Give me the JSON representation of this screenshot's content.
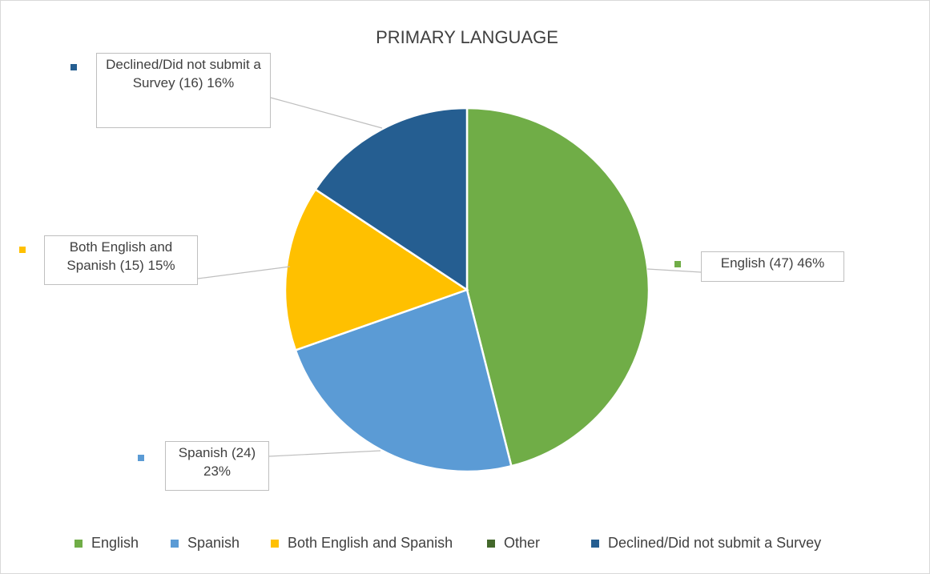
{
  "chart_data": {
    "type": "pie",
    "title": "PRIMARY LANGUAGE",
    "categories": [
      "English",
      "Spanish",
      "Both English and Spanish",
      "Other",
      "Declined/Did not submit a Survey"
    ],
    "values": [
      47,
      24,
      15,
      0,
      16
    ],
    "value_labels": [
      "English (47) 46%",
      "Spanish (24) 23%",
      "Both English and Spanish (15) 15%",
      null,
      "Declined/Did not submit a Survey (16) 16%"
    ],
    "colors": [
      "#70ad47",
      "#5b9bd5",
      "#ffc000",
      "#43682b",
      "#255e91"
    ],
    "legend": "bottom"
  }
}
